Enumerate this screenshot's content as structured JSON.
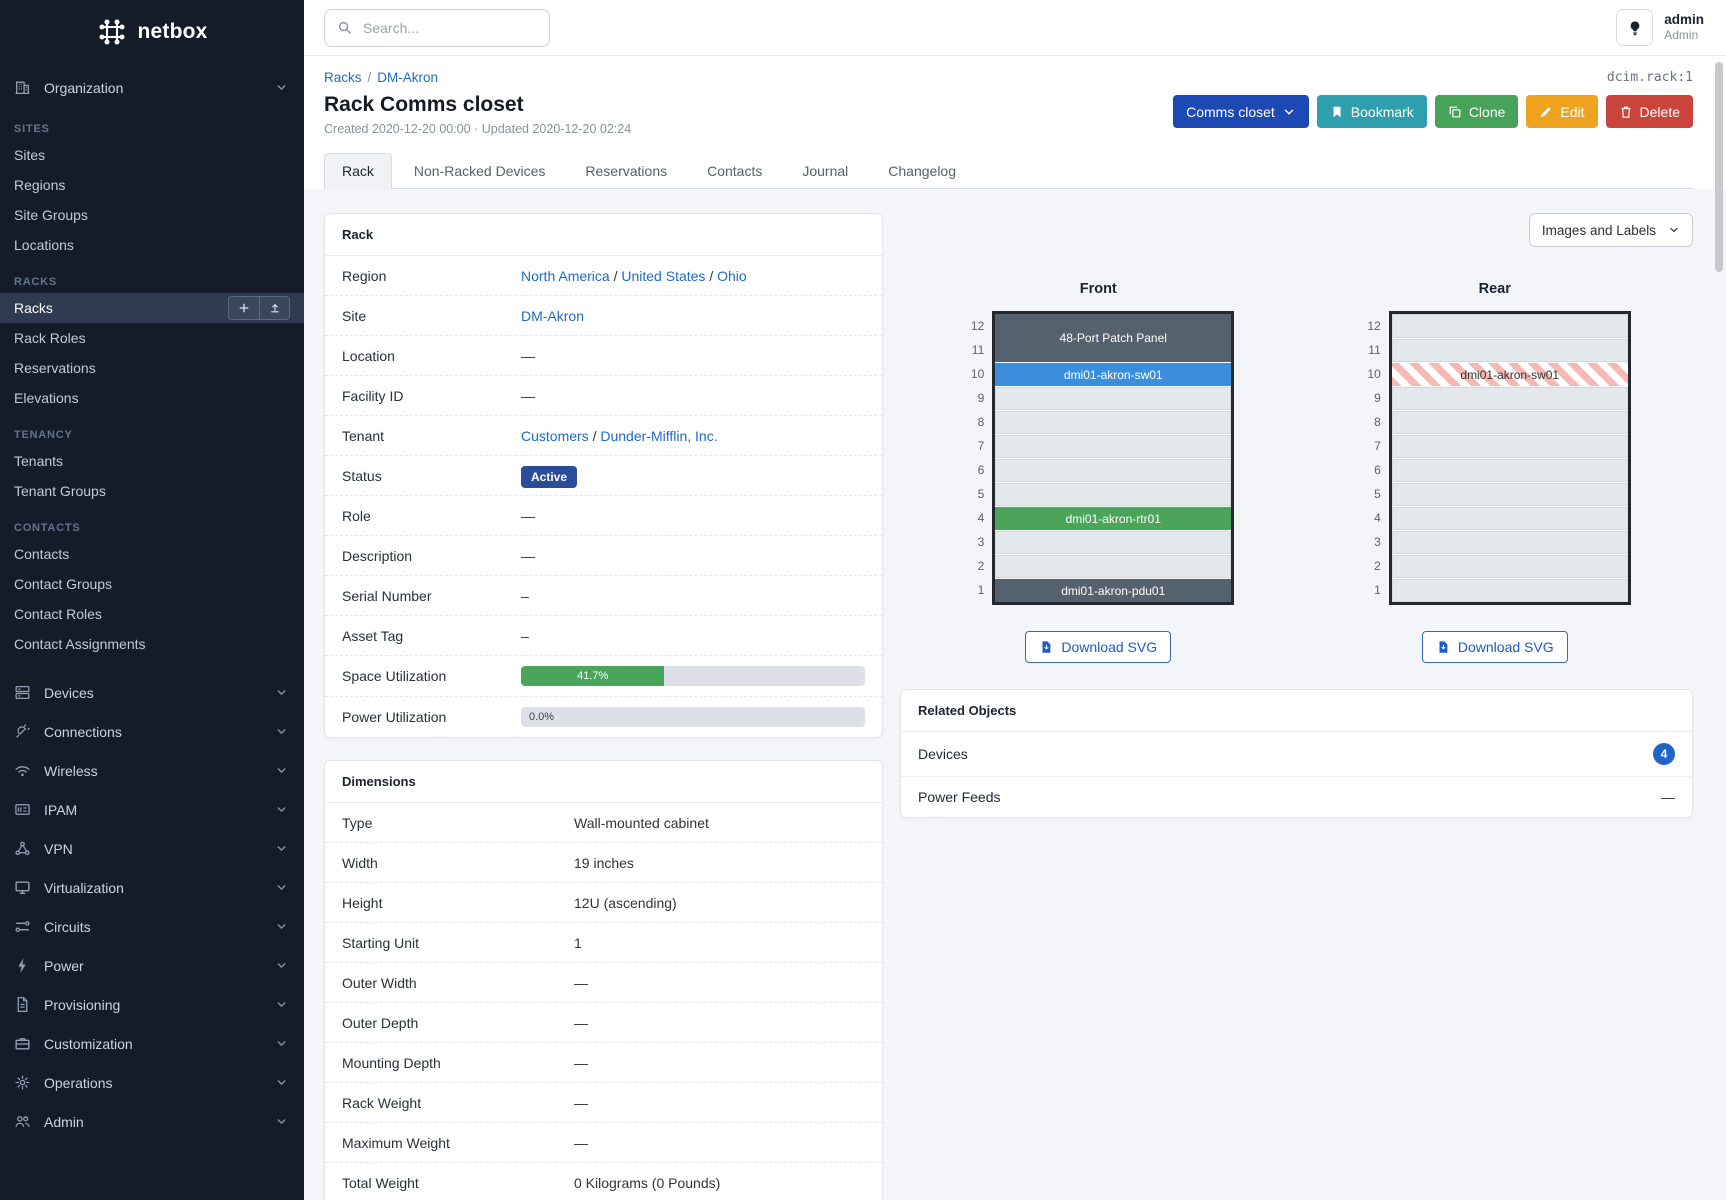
{
  "app": {
    "logo_text": "netbox"
  },
  "topbar": {
    "search_placeholder": "Search...",
    "user_name": "admin",
    "user_role": "Admin"
  },
  "sidebar": {
    "organization": {
      "label": "Organization",
      "icon": "building-icon"
    },
    "sections": [
      {
        "title": "SITES",
        "items": [
          {
            "label": "Sites"
          },
          {
            "label": "Regions"
          },
          {
            "label": "Site Groups"
          },
          {
            "label": "Locations"
          }
        ]
      },
      {
        "title": "RACKS",
        "items": [
          {
            "label": "Racks",
            "active": true,
            "actions": [
              "plus-icon",
              "upload-icon"
            ]
          },
          {
            "label": "Rack Roles"
          },
          {
            "label": "Reservations"
          },
          {
            "label": "Elevations"
          }
        ]
      },
      {
        "title": "TENANCY",
        "items": [
          {
            "label": "Tenants"
          },
          {
            "label": "Tenant Groups"
          }
        ]
      },
      {
        "title": "CONTACTS",
        "items": [
          {
            "label": "Contacts"
          },
          {
            "label": "Contact Groups"
          },
          {
            "label": "Contact Roles"
          },
          {
            "label": "Contact Assignments"
          }
        ]
      }
    ],
    "menus": [
      {
        "label": "Devices",
        "icon": "server-icon"
      },
      {
        "label": "Connections",
        "icon": "plug-icon"
      },
      {
        "label": "Wireless",
        "icon": "wifi-icon"
      },
      {
        "label": "IPAM",
        "icon": "ipam-icon"
      },
      {
        "label": "VPN",
        "icon": "vpn-icon"
      },
      {
        "label": "Virtualization",
        "icon": "monitor-icon"
      },
      {
        "label": "Circuits",
        "icon": "circuits-icon"
      },
      {
        "label": "Power",
        "icon": "power-icon"
      },
      {
        "label": "Provisioning",
        "icon": "document-icon"
      },
      {
        "label": "Customization",
        "icon": "briefcase-icon"
      },
      {
        "label": "Operations",
        "icon": "gear-icon"
      },
      {
        "label": "Admin",
        "icon": "users-icon"
      }
    ]
  },
  "page": {
    "breadcrumb": [
      {
        "label": "Racks"
      },
      {
        "label": "DM-Akron"
      }
    ],
    "breadcrumb_separator": "/",
    "object_id": "dcim.rack:1",
    "title": "Rack Comms closet",
    "meta": "Created 2020-12-20 00:00 · Updated 2020-12-20 02:24",
    "actions": {
      "group_button": "Comms closet",
      "bookmark": "Bookmark",
      "clone": "Clone",
      "edit": "Edit",
      "delete": "Delete"
    },
    "tabs": [
      {
        "label": "Rack",
        "active": true
      },
      {
        "label": "Non-Racked Devices"
      },
      {
        "label": "Reservations"
      },
      {
        "label": "Contacts"
      },
      {
        "label": "Journal"
      },
      {
        "label": "Changelog"
      }
    ]
  },
  "rack_panel": {
    "title": "Rack",
    "rows": [
      {
        "label": "Region",
        "type": "links",
        "parts": [
          "North America",
          "United States",
          "Ohio"
        ]
      },
      {
        "label": "Site",
        "type": "links",
        "parts": [
          "DM-Akron"
        ]
      },
      {
        "label": "Location",
        "type": "text",
        "value": "—"
      },
      {
        "label": "Facility ID",
        "type": "text",
        "value": "—"
      },
      {
        "label": "Tenant",
        "type": "links",
        "parts": [
          "Customers",
          "Dunder-Mifflin, Inc."
        ]
      },
      {
        "label": "Status",
        "type": "badge",
        "value": "Active"
      },
      {
        "label": "Role",
        "type": "text",
        "value": "—"
      },
      {
        "label": "Description",
        "type": "text",
        "value": "—"
      },
      {
        "label": "Serial Number",
        "type": "text",
        "value": "–"
      },
      {
        "label": "Asset Tag",
        "type": "text",
        "value": "–"
      },
      {
        "label": "Space Utilization",
        "type": "progress",
        "value": 41.7,
        "text": "41.7%"
      },
      {
        "label": "Power Utilization",
        "type": "progress-empty",
        "value": 0.0,
        "text": "0.0%"
      }
    ]
  },
  "dimensions_panel": {
    "title": "Dimensions",
    "rows": [
      {
        "label": "Type",
        "type": "text",
        "value": "Wall-mounted cabinet"
      },
      {
        "label": "Width",
        "type": "text",
        "value": "19 inches"
      },
      {
        "label": "Height",
        "type": "text",
        "value": "12U (ascending)"
      },
      {
        "label": "Starting Unit",
        "type": "text",
        "value": "1"
      },
      {
        "label": "Outer Width",
        "type": "text",
        "value": "—"
      },
      {
        "label": "Outer Depth",
        "type": "text",
        "value": "—"
      },
      {
        "label": "Mounting Depth",
        "type": "text",
        "value": "—"
      },
      {
        "label": "Rack Weight",
        "type": "text",
        "value": "—"
      },
      {
        "label": "Maximum Weight",
        "type": "text",
        "value": "—"
      },
      {
        "label": "Total Weight",
        "type": "text",
        "value": "0 Kilograms (0 Pounds)"
      }
    ]
  },
  "elevations": {
    "view_select": "Images and Labels",
    "download_label": "Download SVG",
    "unit_numbers": [
      12,
      11,
      10,
      9,
      8,
      7,
      6,
      5,
      4,
      3,
      2,
      1
    ],
    "front": {
      "title": "Front",
      "units": [
        {
          "h": 2,
          "kind": "device",
          "label": "48-Port Patch Panel",
          "color": "#55626d"
        },
        {
          "h": 1,
          "kind": "device",
          "label": "dmi01-akron-sw01",
          "color": "#3a8edc"
        },
        {
          "h": 1,
          "kind": "empty"
        },
        {
          "h": 1,
          "kind": "empty"
        },
        {
          "h": 1,
          "kind": "empty"
        },
        {
          "h": 1,
          "kind": "empty"
        },
        {
          "h": 1,
          "kind": "empty"
        },
        {
          "h": 1,
          "kind": "device",
          "label": "dmi01-akron-rtr01",
          "color": "#4ca35a"
        },
        {
          "h": 1,
          "kind": "empty"
        },
        {
          "h": 1,
          "kind": "empty"
        },
        {
          "h": 1,
          "kind": "device",
          "label": "dmi01-akron-pdu01",
          "color": "#55626d"
        }
      ]
    },
    "rear": {
      "title": "Rear",
      "units": [
        {
          "h": 1,
          "kind": "empty"
        },
        {
          "h": 1,
          "kind": "empty"
        },
        {
          "h": 1,
          "kind": "ghost",
          "label": "dmi01-akron-sw01"
        },
        {
          "h": 1,
          "kind": "empty"
        },
        {
          "h": 1,
          "kind": "empty"
        },
        {
          "h": 1,
          "kind": "empty"
        },
        {
          "h": 1,
          "kind": "empty"
        },
        {
          "h": 1,
          "kind": "empty"
        },
        {
          "h": 1,
          "kind": "empty"
        },
        {
          "h": 1,
          "kind": "empty"
        },
        {
          "h": 1,
          "kind": "empty"
        },
        {
          "h": 1,
          "kind": "empty"
        }
      ]
    }
  },
  "related_objects": {
    "title": "Related Objects",
    "rows": [
      {
        "label": "Devices",
        "count": "4"
      },
      {
        "label": "Power Feeds",
        "value": "—"
      }
    ]
  },
  "colors": {
    "link_blue": "#206bc4",
    "status_active_badge": "#2a4d9b",
    "utilization_green": "#4aa55c",
    "group_button_blue": "#1d49b5",
    "bookmark_teal": "#2d9fad",
    "clone_green": "#47a35a",
    "edit_amber": "#efa31f",
    "delete_red": "#cb443c",
    "device_slate": "#55626d",
    "device_blue": "#3a8edc",
    "device_green": "#4ca35a",
    "sidebar_bg": "#151c29"
  }
}
